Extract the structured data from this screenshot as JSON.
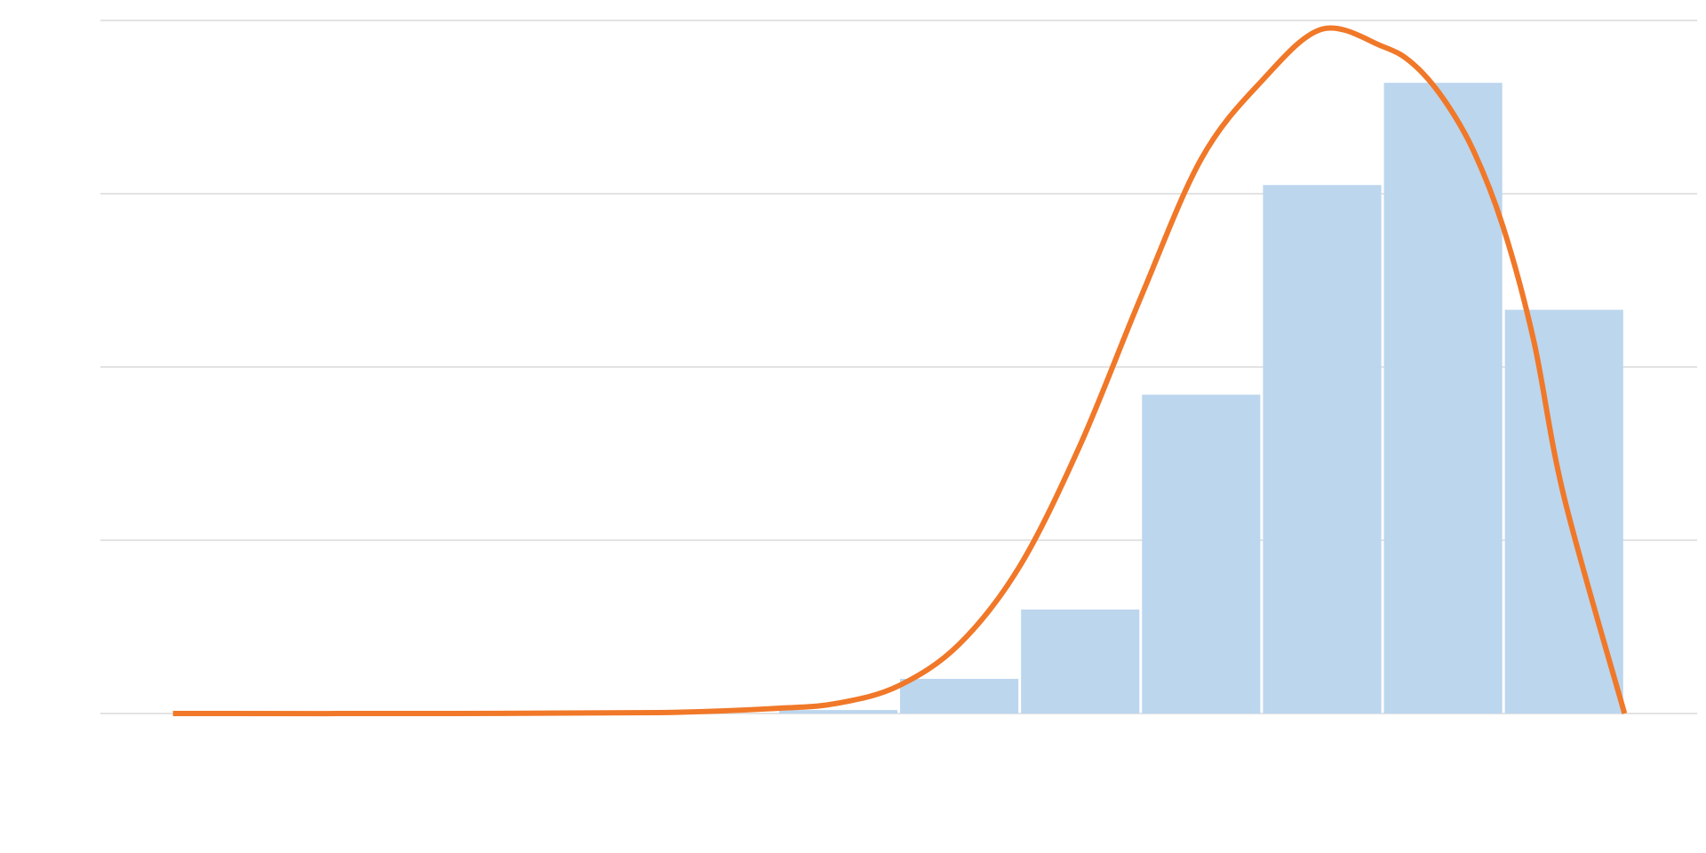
{
  "chart_data": {
    "type": "bar",
    "title": "",
    "xlabel": "",
    "ylabel": "",
    "grid": "horizontal",
    "ylim": [
      0,
      4
    ],
    "y_gridlines": [
      0,
      1,
      2,
      3,
      4
    ],
    "bin_edges": [
      0,
      1,
      2,
      3,
      4,
      5,
      6,
      7,
      8,
      9,
      10,
      11,
      12
    ],
    "xlim": [
      -0.6,
      12.6
    ],
    "series": [
      {
        "kind": "histogram",
        "values": [
          0,
          0,
          0,
          0,
          0,
          0.02,
          0.2,
          0.6,
          1.84,
          3.05,
          3.64,
          2.33
        ],
        "color": "#bcd6ee"
      },
      {
        "kind": "density-curve",
        "color": "#f07828",
        "x": [
          0,
          2,
          4,
          5,
          5.5,
          6,
          6.5,
          7,
          7.5,
          8,
          8.5,
          9,
          9.5,
          10,
          10.25,
          10.5,
          10.75,
          11,
          11.25,
          11.5,
          12
        ],
        "y": [
          0,
          0,
          0.005,
          0.03,
          0.06,
          0.16,
          0.4,
          0.85,
          1.55,
          2.4,
          3.2,
          3.65,
          3.95,
          3.85,
          3.75,
          3.55,
          3.25,
          2.8,
          2.15,
          1.25,
          0
        ]
      }
    ]
  }
}
